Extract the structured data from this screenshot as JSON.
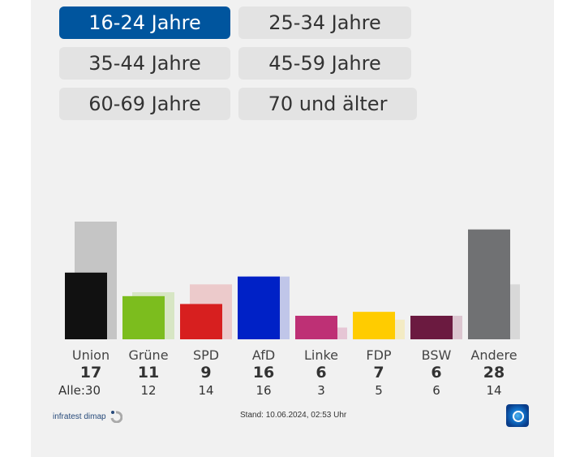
{
  "age_filters": [
    {
      "label": "16-24 Jahre",
      "active": true
    },
    {
      "label": "25-34 Jahre",
      "active": false
    },
    {
      "label": "35-44 Jahre",
      "active": false
    },
    {
      "label": "45-59 Jahre",
      "active": false
    },
    {
      "label": "60-69 Jahre",
      "active": false
    },
    {
      "label": "70 und älter",
      "active": false
    }
  ],
  "chart_data": {
    "type": "bar",
    "title": "",
    "categories": [
      "Union",
      "Grüne",
      "SPD",
      "AfD",
      "Linke",
      "FDP",
      "BSW",
      "Andere"
    ],
    "series": [
      {
        "name": "16-24 Jahre",
        "values": [
          17,
          11,
          9,
          16,
          6,
          7,
          6,
          28
        ]
      },
      {
        "name": "Alle",
        "values": [
          30,
          12,
          14,
          16,
          3,
          5,
          6,
          14
        ]
      }
    ],
    "colors": [
      "#111111",
      "#7cbd1e",
      "#d71f1f",
      "#0021c6",
      "#be3075",
      "#ffcc00",
      "#6b1a40",
      "#707173"
    ],
    "ghost_colors": [
      "#c5c5c5",
      "#d7e6c4",
      "#eccacb",
      "#c0c6e9",
      "#e6c6d5",
      "#f3ebc4",
      "#dcc6d0",
      "#d8d8d8"
    ],
    "all_prefix": "Alle:",
    "ylim": [
      0,
      30
    ]
  },
  "footer": {
    "source": "infratest dimap",
    "timestamp": "Stand: 10.06.2024, 02:53 Uhr"
  }
}
